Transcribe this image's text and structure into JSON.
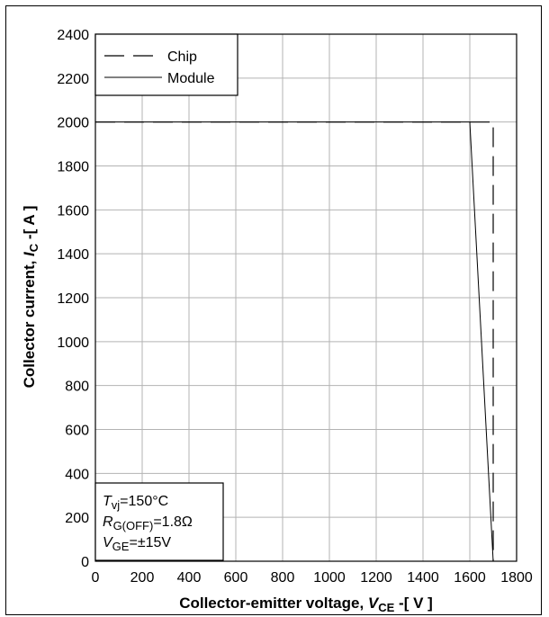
{
  "chart_data": {
    "type": "line",
    "title": "",
    "xlabel": {
      "prefix": "Collector-emitter voltage, ",
      "sym": "V",
      "sub": "CE",
      "suffix": " -[ V ]"
    },
    "ylabel": {
      "prefix": "Collector current, ",
      "sym": "I",
      "sub": "C",
      "suffix": " -[ A ]"
    },
    "xlim": [
      0,
      1800
    ],
    "ylim": [
      0,
      2400
    ],
    "xticks": [
      0,
      200,
      400,
      600,
      800,
      1000,
      1200,
      1400,
      1600,
      1800
    ],
    "yticks": [
      0,
      200,
      400,
      600,
      800,
      1000,
      1200,
      1400,
      1600,
      1800,
      2000,
      2200,
      2400
    ],
    "grid": true,
    "legend_position": "top-left",
    "series": [
      {
        "name": "Chip",
        "style": "dashed",
        "x": [
          0,
          1700,
          1700
        ],
        "y": [
          2000,
          2000,
          0
        ]
      },
      {
        "name": "Module",
        "style": "solid",
        "x": [
          0,
          1600,
          1700
        ],
        "y": [
          2000,
          2000,
          0
        ]
      }
    ],
    "annotation": [
      {
        "sym": "T",
        "sub": "vj",
        "rest": "=150°C"
      },
      {
        "sym": "R",
        "sub": "G(OFF)",
        "rest": "=1.8Ω"
      },
      {
        "sym": "V",
        "sub": "GE",
        "rest": "=±15V"
      }
    ]
  }
}
